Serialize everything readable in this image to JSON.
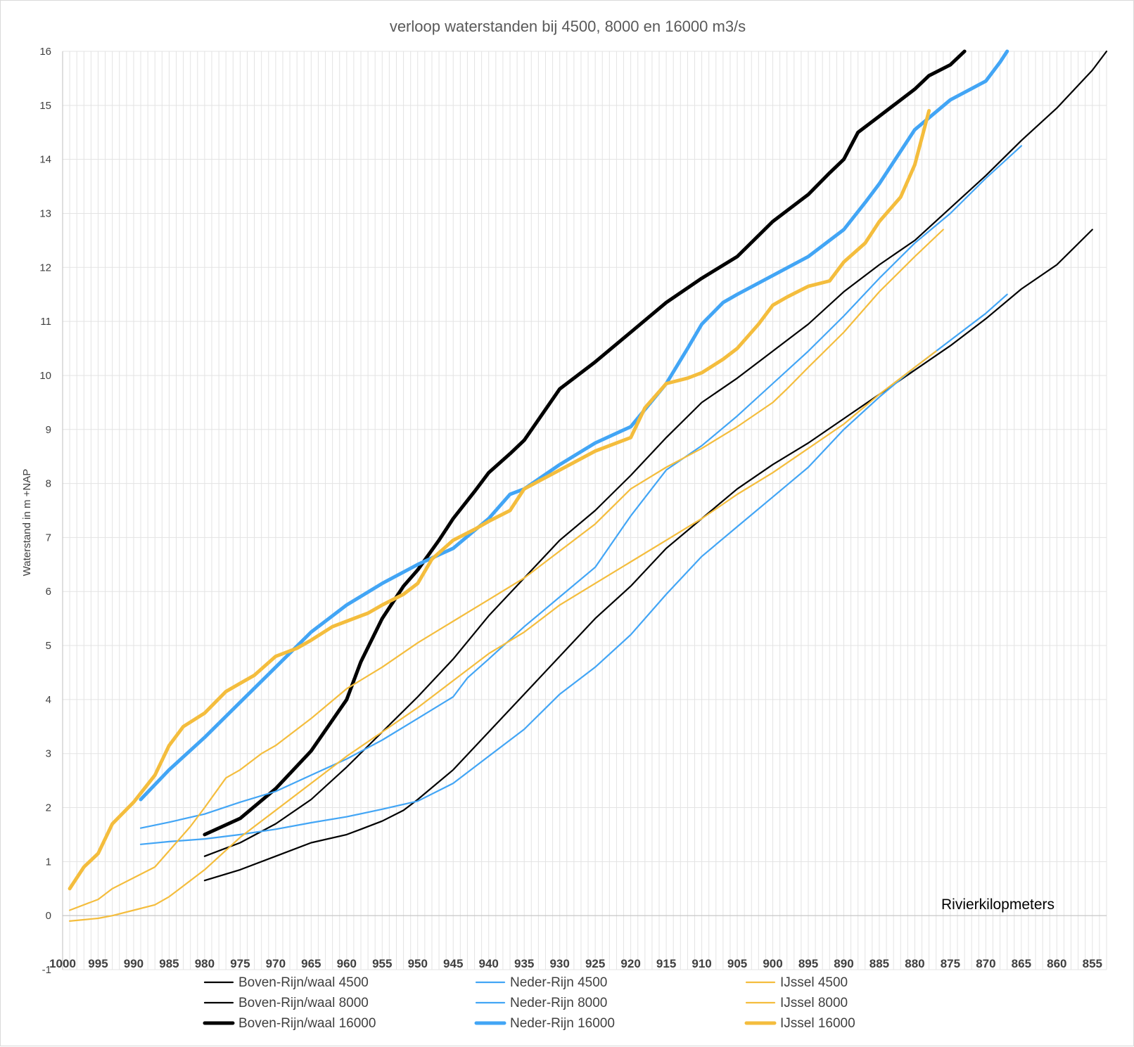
{
  "chart_data": {
    "type": "line",
    "title": "verloop waterstanden bij 4500, 8000 en 16000 m3/s",
    "xlabel": "Rivierkilopmeters",
    "ylabel": "Waterstand in m +NAP",
    "xlim": [
      1000,
      853
    ],
    "x_reversed": true,
    "ylim": [
      -1,
      16
    ],
    "xticks": [
      1000,
      995,
      990,
      985,
      980,
      975,
      970,
      965,
      960,
      955,
      950,
      945,
      940,
      935,
      930,
      925,
      920,
      915,
      910,
      905,
      900,
      895,
      890,
      885,
      880,
      875,
      870,
      865,
      860,
      855
    ],
    "yticks": [
      -1,
      0,
      1,
      2,
      3,
      4,
      5,
      6,
      7,
      8,
      9,
      10,
      11,
      12,
      13,
      14,
      15,
      16
    ],
    "grid": true,
    "legend_position": "bottom",
    "series": [
      {
        "name": "Boven-Rijn/waal 4500",
        "color": "#000000",
        "weight": "thin",
        "x": [
          980,
          975,
          970,
          965,
          960,
          958,
          955,
          952,
          950,
          945,
          940,
          935,
          930,
          925,
          920,
          915,
          910,
          905,
          900,
          895,
          890,
          885,
          880,
          875,
          870,
          865,
          860,
          855
        ],
        "y": [
          0.65,
          0.85,
          1.1,
          1.35,
          1.5,
          1.6,
          1.75,
          1.95,
          2.15,
          2.7,
          3.4,
          4.1,
          4.8,
          5.5,
          6.1,
          6.8,
          7.35,
          7.9,
          8.35,
          8.75,
          9.2,
          9.65,
          10.1,
          10.55,
          11.05,
          11.6,
          12.05,
          12.7
        ]
      },
      {
        "name": "Boven-Rijn/waal 8000",
        "color": "#000000",
        "weight": "thin",
        "x": [
          980,
          975,
          970,
          965,
          960,
          955,
          950,
          945,
          940,
          935,
          930,
          925,
          920,
          915,
          910,
          905,
          900,
          895,
          890,
          885,
          880,
          875,
          870,
          865,
          860,
          855,
          853
        ],
        "y": [
          1.1,
          1.35,
          1.7,
          2.15,
          2.75,
          3.4,
          4.05,
          4.75,
          5.55,
          6.25,
          6.95,
          7.5,
          8.15,
          8.85,
          9.5,
          9.95,
          10.45,
          10.95,
          11.55,
          12.05,
          12.5,
          13.1,
          13.7,
          14.35,
          14.95,
          15.65,
          16.0
        ]
      },
      {
        "name": "Boven-Rijn/waal 16000",
        "color": "#000000",
        "weight": "thick",
        "x": [
          980,
          975,
          970,
          965,
          960,
          958,
          955,
          952,
          950,
          947,
          945,
          942,
          940,
          937,
          935,
          930,
          925,
          920,
          915,
          910,
          905,
          900,
          895,
          892,
          890,
          888,
          885,
          880,
          878,
          875,
          873
        ],
        "y": [
          1.5,
          1.8,
          2.35,
          3.05,
          4.0,
          4.7,
          5.5,
          6.1,
          6.4,
          6.95,
          7.35,
          7.85,
          8.2,
          8.55,
          8.8,
          9.75,
          10.25,
          10.8,
          11.35,
          11.8,
          12.2,
          12.85,
          13.35,
          13.75,
          14.0,
          14.5,
          14.8,
          15.3,
          15.55,
          15.75,
          16.0
        ]
      },
      {
        "name": "Neder-Rijn 4500",
        "color": "#42a5f5",
        "weight": "thin",
        "x": [
          989,
          985,
          980,
          975,
          970,
          965,
          960,
          955,
          950,
          945,
          940,
          935,
          930,
          925,
          920,
          915,
          910,
          905,
          900,
          895,
          890,
          885,
          880,
          875,
          870,
          867
        ],
        "y": [
          1.32,
          1.37,
          1.42,
          1.5,
          1.6,
          1.72,
          1.83,
          1.97,
          2.12,
          2.45,
          2.95,
          3.45,
          4.1,
          4.6,
          5.2,
          5.95,
          6.65,
          7.2,
          7.75,
          8.3,
          9.0,
          9.6,
          10.15,
          10.65,
          11.15,
          11.5
        ]
      },
      {
        "name": "Neder-Rijn 8000",
        "color": "#42a5f5",
        "weight": "thin",
        "x": [
          989,
          985,
          980,
          975,
          970,
          965,
          960,
          955,
          950,
          945,
          943,
          940,
          935,
          930,
          925,
          920,
          915,
          910,
          905,
          900,
          895,
          890,
          885,
          880,
          875,
          870,
          865
        ],
        "y": [
          1.62,
          1.73,
          1.88,
          2.1,
          2.3,
          2.6,
          2.9,
          3.25,
          3.65,
          4.05,
          4.4,
          4.75,
          5.35,
          5.9,
          6.45,
          7.4,
          8.25,
          8.7,
          9.25,
          9.85,
          10.45,
          11.1,
          11.8,
          12.45,
          13.0,
          13.65,
          14.25
        ]
      },
      {
        "name": "Neder-Rijn 16000",
        "color": "#42a5f5",
        "weight": "thick",
        "x": [
          989,
          985,
          980,
          975,
          970,
          965,
          960,
          955,
          950,
          945,
          940,
          937,
          935,
          930,
          925,
          920,
          915,
          912,
          910,
          907,
          905,
          900,
          895,
          890,
          887,
          885,
          880,
          875,
          870,
          868,
          867
        ],
        "y": [
          2.15,
          2.7,
          3.3,
          3.95,
          4.6,
          5.25,
          5.75,
          6.15,
          6.5,
          6.8,
          7.35,
          7.8,
          7.9,
          8.35,
          8.75,
          9.05,
          9.85,
          10.5,
          10.95,
          11.35,
          11.5,
          11.85,
          12.2,
          12.7,
          13.2,
          13.55,
          14.55,
          15.1,
          15.45,
          15.8,
          16.0
        ]
      },
      {
        "name": "IJssel 4500",
        "color": "#f4bd3d",
        "weight": "thin",
        "x": [
          999,
          995,
          993,
          990,
          987,
          985,
          980,
          975,
          970,
          965,
          960,
          955,
          950,
          945,
          940,
          935,
          930,
          925,
          920,
          915,
          910,
          905,
          900,
          895,
          890,
          885,
          880,
          877
        ],
        "y": [
          -0.1,
          -0.05,
          0.0,
          0.1,
          0.2,
          0.35,
          0.85,
          1.45,
          1.95,
          2.45,
          2.95,
          3.4,
          3.85,
          4.35,
          4.85,
          5.25,
          5.75,
          6.15,
          6.55,
          6.95,
          7.35,
          7.8,
          8.2,
          8.65,
          9.1,
          9.65,
          10.15,
          10.45
        ]
      },
      {
        "name": "IJssel 8000",
        "color": "#f4bd3d",
        "weight": "thin",
        "x": [
          999,
          995,
          993,
          990,
          987,
          985,
          982,
          980,
          977,
          975,
          972,
          970,
          965,
          960,
          955,
          950,
          945,
          940,
          935,
          930,
          925,
          920,
          915,
          910,
          905,
          900,
          898,
          895,
          890,
          885,
          880,
          876
        ],
        "y": [
          0.1,
          0.3,
          0.5,
          0.7,
          0.9,
          1.2,
          1.65,
          2.0,
          2.55,
          2.7,
          3.0,
          3.15,
          3.65,
          4.2,
          4.6,
          5.05,
          5.45,
          5.85,
          6.25,
          6.75,
          7.25,
          7.9,
          8.3,
          8.65,
          9.05,
          9.5,
          9.75,
          10.15,
          10.8,
          11.55,
          12.2,
          12.7
        ]
      },
      {
        "name": "IJssel 16000",
        "color": "#f4bd3d",
        "weight": "thick",
        "x": [
          999,
          997,
          995,
          993,
          990,
          987,
          985,
          983,
          980,
          977,
          975,
          973,
          970,
          967,
          965,
          962,
          960,
          957,
          955,
          952,
          950,
          948,
          945,
          942,
          940,
          937,
          935,
          930,
          925,
          920,
          918,
          915,
          912,
          910,
          907,
          905,
          902,
          900,
          898,
          895,
          892,
          890,
          887,
          885,
          882,
          880,
          878
        ],
        "y": [
          0.5,
          0.9,
          1.15,
          1.7,
          2.1,
          2.6,
          3.15,
          3.5,
          3.75,
          4.15,
          4.3,
          4.45,
          4.8,
          4.95,
          5.1,
          5.35,
          5.45,
          5.6,
          5.75,
          5.95,
          6.15,
          6.6,
          6.95,
          7.15,
          7.3,
          7.5,
          7.9,
          8.25,
          8.6,
          8.85,
          9.4,
          9.85,
          9.95,
          10.05,
          10.3,
          10.5,
          10.95,
          11.3,
          11.45,
          11.65,
          11.75,
          12.1,
          12.45,
          12.85,
          13.3,
          13.9,
          14.9
        ]
      }
    ]
  }
}
